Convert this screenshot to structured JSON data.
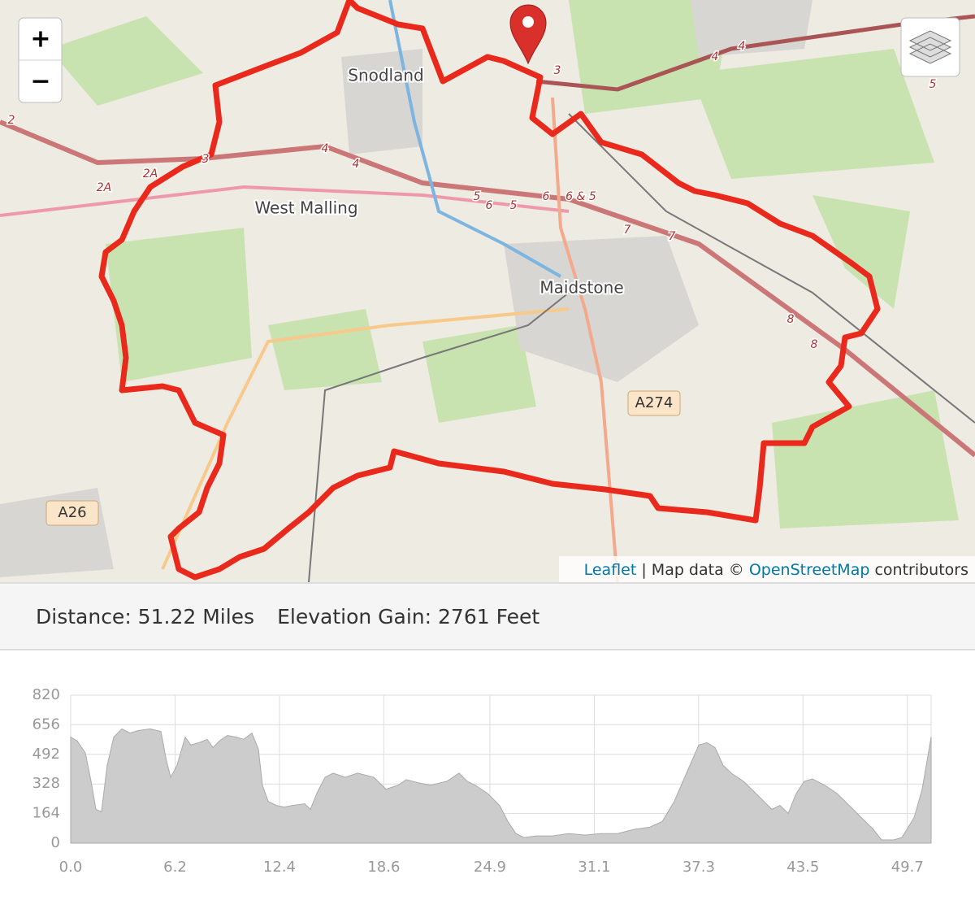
{
  "map": {
    "zoom_in": "+",
    "zoom_out": "−",
    "places": [
      "Snodland",
      "West Malling",
      "Maidstone"
    ],
    "roads": [
      "A274",
      "A26"
    ],
    "junctions": [
      "2",
      "2A",
      "2A",
      "3",
      "4",
      "4",
      "4",
      "4",
      "5",
      "6",
      "5",
      "6",
      "6 & 5",
      "7",
      "7",
      "8",
      "8",
      "5",
      "3"
    ],
    "attribution": {
      "leaflet": "Leaflet",
      "middle": "| Map data ©",
      "osm": "OpenStreetMap",
      "tail": "contributors"
    }
  },
  "stats": {
    "distance": "Distance: 51.22 Miles",
    "elevation_gain": "Elevation Gain: 2761 Feet"
  },
  "chart_data": {
    "type": "area",
    "color": "#cccccc",
    "line_color": "#aaaaaa",
    "grid": true,
    "x": [
      0,
      0.39,
      0.87,
      1.21,
      1.5,
      1.83,
      2.17,
      2.56,
      3.04,
      3.52,
      4.01,
      4.73,
      5.36,
      5.69,
      5.94,
      6.32,
      6.8,
      7.14,
      7.63,
      8.11,
      8.45,
      8.83,
      9.31,
      9.8,
      10.28,
      10.76,
      11.15,
      11.39,
      11.73,
      12.21,
      12.69,
      13.18,
      13.9,
      14.24,
      14.62,
      15.11,
      15.59,
      16.31,
      17.04,
      18.0,
      18.73,
      19.45,
      19.93,
      20.66,
      21.38,
      22.35,
      23.07,
      23.55,
      24.03,
      24.76,
      25.48,
      25.97,
      26.45,
      26.93,
      27.65,
      28.62,
      29.58,
      30.55,
      31.52,
      32.48,
      33.45,
      34.41,
      35.14,
      35.86,
      36.58,
      37.31,
      37.79,
      38.27,
      38.75,
      39.24,
      39.96,
      40.44,
      40.93,
      41.65,
      42.13,
      42.62,
      43.1,
      43.58,
      44.06,
      44.79,
      45.51,
      45.99,
      46.48,
      46.96,
      47.68,
      48.17,
      48.89,
      49.37,
      50.1,
      50.58,
      51.11
    ],
    "values": [
      588,
      566,
      500,
      343,
      187,
      174,
      432,
      588,
      633,
      610,
      624,
      633,
      619,
      455,
      365,
      432,
      588,
      544,
      557,
      575,
      530,
      566,
      597,
      588,
      575,
      610,
      521,
      321,
      232,
      209,
      200,
      209,
      218,
      187,
      276,
      365,
      388,
      365,
      388,
      365,
      299,
      321,
      352,
      334,
      321,
      343,
      388,
      343,
      321,
      276,
      209,
      120,
      53,
      31,
      40,
      40,
      53,
      45,
      53,
      53,
      76,
      89,
      120,
      232,
      388,
      544,
      557,
      530,
      432,
      388,
      343,
      299,
      254,
      187,
      209,
      165,
      276,
      343,
      356,
      321,
      276,
      232,
      187,
      142,
      76,
      18,
      18,
      31,
      142,
      299,
      588
    ],
    "xlim": [
      0,
      51.11
    ],
    "ylim": [
      0,
      820
    ],
    "xticks": [
      {
        "value": 0,
        "label": "0.0"
      },
      6.2,
      12.4,
      18.6,
      24.9,
      31.1,
      37.3,
      43.5,
      49.7
    ],
    "yticks": [
      0,
      164,
      328,
      492,
      656,
      820
    ]
  }
}
